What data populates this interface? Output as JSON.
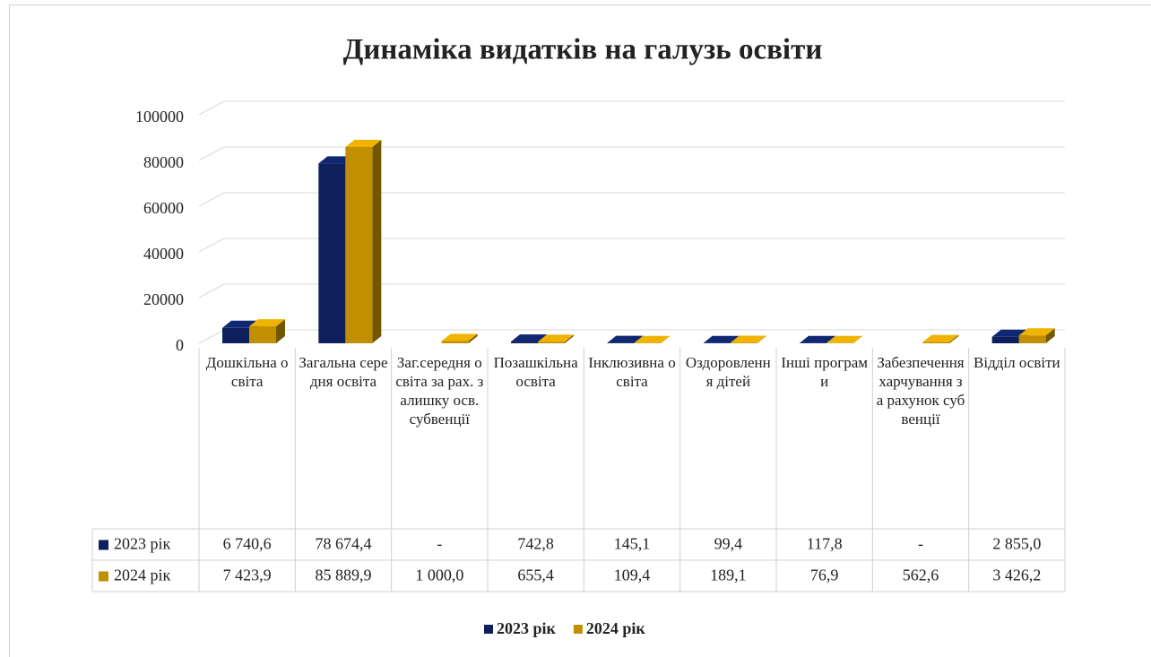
{
  "chart_data": {
    "type": "bar3d",
    "title": "Динаміка видатків на галузь освіти",
    "categories": [
      "Дошкільна освіта",
      "Загальна середня освіта",
      "Заг.середня освіта за рах. залишку осв. субвенції",
      "Позашкільна освіта",
      "Інклюзивна освіта",
      "Оздоровлення дітей",
      "Інші програми",
      "Забезпечення харчування за рахунок субвенції",
      "Відділ освіти"
    ],
    "series": [
      {
        "name": "2023 рік",
        "color": "#0d1f5c",
        "values": [
          6740.6,
          78674.4,
          null,
          742.8,
          145.1,
          99.4,
          117.8,
          null,
          2855.0
        ],
        "value_labels": [
          "6 740,6",
          "78 674,4",
          "-",
          "742,8",
          "145,1",
          "99,4",
          "117,8",
          "-",
          "2 855,0"
        ]
      },
      {
        "name": "2024 рік",
        "color": "#c09000",
        "values": [
          7423.9,
          85889.9,
          1000.0,
          655.4,
          109.4,
          189.1,
          76.9,
          562.6,
          3426.2
        ],
        "value_labels": [
          "7 423,9",
          "85 889,9",
          "1 000,0",
          "655,4",
          "109,4",
          "189,1",
          "76,9",
          "562,6",
          "3 426,2"
        ]
      }
    ],
    "ylim": [
      0,
      100000
    ],
    "yticks": [
      0,
      20000,
      40000,
      60000,
      80000,
      100000
    ],
    "grid": true,
    "legend": "bottom",
    "data_table": true
  }
}
